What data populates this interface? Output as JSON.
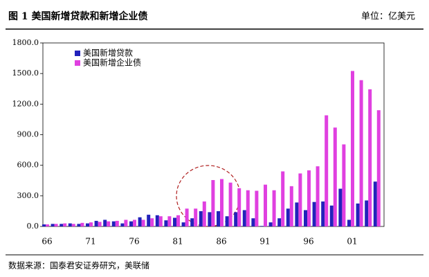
{
  "header": {
    "title": "图 1 美国新增贷款和新增企业债",
    "unit": "单位：亿美元"
  },
  "chart_data": {
    "type": "bar",
    "categories": [
      "66",
      null,
      null,
      null,
      null,
      "71",
      null,
      null,
      null,
      null,
      "76",
      null,
      null,
      null,
      null,
      "81",
      null,
      null,
      null,
      null,
      "86",
      null,
      null,
      null,
      null,
      "91",
      null,
      null,
      null,
      null,
      "96",
      null,
      null,
      null,
      null,
      "01",
      null,
      null,
      null
    ],
    "series": [
      {
        "name": "美国新增贷款",
        "color": "#2222bb",
        "values": [
          20,
          25,
          25,
          30,
          25,
          30,
          55,
          65,
          50,
          30,
          50,
          90,
          115,
          110,
          60,
          85,
          40,
          80,
          150,
          140,
          150,
          100,
          140,
          160,
          80,
          5,
          40,
          80,
          175,
          235,
          160,
          240,
          245,
          205,
          370,
          65,
          225,
          255,
          440
        ]
      },
      {
        "name": "美国新增企业债",
        "color": "#e040e0",
        "values": [
          20,
          25,
          30,
          25,
          35,
          40,
          45,
          50,
          55,
          65,
          65,
          65,
          80,
          100,
          100,
          110,
          175,
          175,
          245,
          455,
          465,
          430,
          375,
          355,
          350,
          410,
          355,
          540,
          395,
          520,
          550,
          590,
          1090,
          970,
          805,
          1525,
          1435,
          1345,
          1140
        ]
      }
    ],
    "ylim": [
      0,
      1800
    ],
    "yticks": [
      {
        "value": 0,
        "label": "0.0"
      },
      {
        "value": 300,
        "label": "300.0"
      },
      {
        "value": 600,
        "label": "600.0"
      },
      {
        "value": 900,
        "label": "900.0"
      },
      {
        "value": 1200,
        "label": "1200.0"
      },
      {
        "value": 1500,
        "label": "1500.0"
      },
      {
        "value": 1800,
        "label": "1800.0"
      }
    ],
    "legend": "upper left"
  },
  "footer": {
    "source": "数据来源：国泰君安证券研究，美联储"
  }
}
